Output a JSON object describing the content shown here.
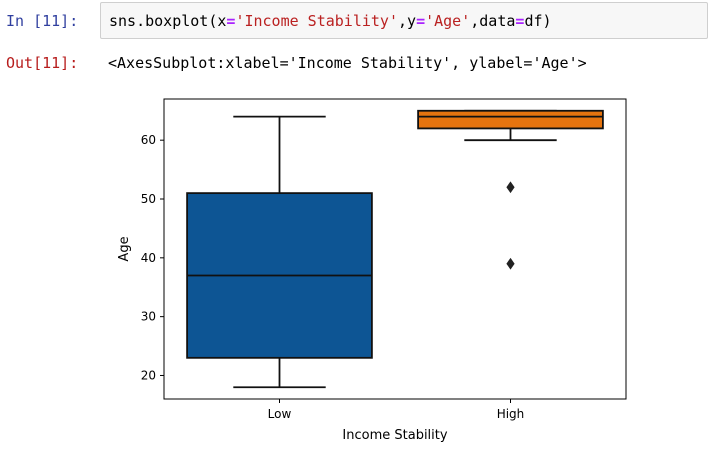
{
  "cell_in": {
    "prompt": "In [11]:",
    "code": {
      "p1": "sns.boxplot(x",
      "eq1": "=",
      "s1": "'Income Stability'",
      "p2": ",y",
      "eq2": "=",
      "s2": "'Age'",
      "p3": ",data",
      "eq3": "=",
      "p4": "df)"
    }
  },
  "cell_out": {
    "prompt": "Out[11]:",
    "text": "<AxesSubplot:xlabel='Income Stability', ylabel='Age'>"
  },
  "colors": {
    "low_box": "#0d5594",
    "high_box": "#e6740f",
    "prompt_in": "#303f9f",
    "prompt_out": "#b71c1c"
  },
  "chart_data": {
    "type": "box",
    "xlabel": "Income Stability",
    "ylabel": "Age",
    "categories": [
      "Low",
      "High"
    ],
    "yticks": [
      20,
      30,
      40,
      50,
      60
    ],
    "ylim": [
      16,
      67
    ],
    "boxes": [
      {
        "name": "Low",
        "whisker_low": 18,
        "q1": 23,
        "median": 37,
        "q3": 51,
        "whisker_high": 64,
        "outliers": []
      },
      {
        "name": "High",
        "whisker_low": 60,
        "q1": 62,
        "median": 64,
        "q3": 65,
        "whisker_high": 65,
        "outliers": [
          52,
          39
        ]
      }
    ]
  }
}
